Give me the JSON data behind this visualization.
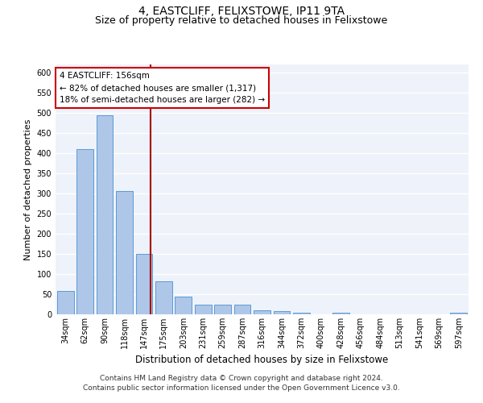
{
  "title": "4, EASTCLIFF, FELIXSTOWE, IP11 9TA",
  "subtitle": "Size of property relative to detached houses in Felixstowe",
  "xlabel": "Distribution of detached houses by size in Felixstowe",
  "ylabel": "Number of detached properties",
  "categories": [
    "34sqm",
    "62sqm",
    "90sqm",
    "118sqm",
    "147sqm",
    "175sqm",
    "203sqm",
    "231sqm",
    "259sqm",
    "287sqm",
    "316sqm",
    "344sqm",
    "372sqm",
    "400sqm",
    "428sqm",
    "456sqm",
    "484sqm",
    "513sqm",
    "541sqm",
    "569sqm",
    "597sqm"
  ],
  "values": [
    58,
    411,
    495,
    306,
    150,
    82,
    45,
    25,
    25,
    25,
    10,
    8,
    5,
    0,
    5,
    0,
    0,
    0,
    0,
    0,
    5
  ],
  "bar_color": "#aec6e8",
  "bar_edge_color": "#5b9bd5",
  "ylim": [
    0,
    620
  ],
  "yticks": [
    0,
    50,
    100,
    150,
    200,
    250,
    300,
    350,
    400,
    450,
    500,
    550,
    600
  ],
  "property_label": "4 EASTCLIFF: 156sqm",
  "annotation_line1": "← 82% of detached houses are smaller (1,317)",
  "annotation_line2": "18% of semi-detached houses are larger (282) →",
  "annotation_box_color": "#ffffff",
  "annotation_box_edge": "#cc0000",
  "vline_color": "#aa0000",
  "background_color": "#eef2fa",
  "footer_line1": "Contains HM Land Registry data © Crown copyright and database right 2024.",
  "footer_line2": "Contains public sector information licensed under the Open Government Licence v3.0.",
  "title_fontsize": 10,
  "subtitle_fontsize": 9,
  "xlabel_fontsize": 8.5,
  "ylabel_fontsize": 8,
  "tick_fontsize": 7,
  "footer_fontsize": 6.5,
  "annot_fontsize": 7.5
}
